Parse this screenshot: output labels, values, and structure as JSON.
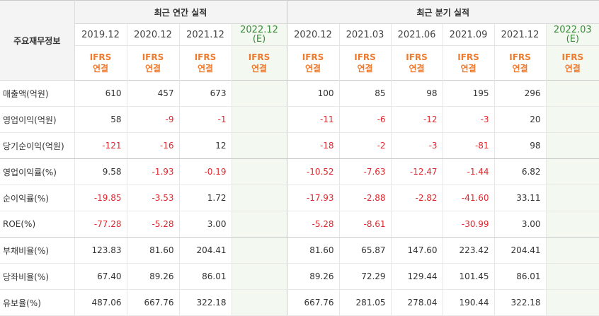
{
  "header": {
    "row_label": "주요재무정보",
    "annual_title": "최근 연간 실적",
    "quarterly_title": "최근 분기 실적"
  },
  "periods": [
    {
      "label": "2019.12",
      "est": null
    },
    {
      "label": "2020.12",
      "est": null
    },
    {
      "label": "2021.12",
      "est": null
    },
    {
      "label": "2022.12",
      "est": "(E)"
    },
    {
      "label": "2020.12",
      "est": null
    },
    {
      "label": "2021.03",
      "est": null
    },
    {
      "label": "2021.06",
      "est": null
    },
    {
      "label": "2021.09",
      "est": null
    },
    {
      "label": "2021.12",
      "est": null
    },
    {
      "label": "2022.03",
      "est": "(E)"
    }
  ],
  "ifrs": {
    "line1": "IFRS",
    "line2": "연결"
  },
  "rows": [
    {
      "label": "매출액(억원)",
      "values": [
        "610",
        "457",
        "673",
        "",
        "100",
        "85",
        "98",
        "195",
        "296",
        ""
      ]
    },
    {
      "label": "영업이익(억원)",
      "values": [
        "58",
        "-9",
        "-1",
        "",
        "-11",
        "-6",
        "-12",
        "-3",
        "20",
        ""
      ]
    },
    {
      "label": "당기순이익(억원)",
      "values": [
        "-121",
        "-16",
        "12",
        "",
        "-18",
        "-2",
        "-3",
        "-81",
        "98",
        ""
      ]
    },
    {
      "label": "영업이익률(%)",
      "values": [
        "9.58",
        "-1.93",
        "-0.19",
        "",
        "-10.52",
        "-7.63",
        "-12.47",
        "-1.44",
        "6.82",
        ""
      ]
    },
    {
      "label": "순이익률(%)",
      "values": [
        "-19.85",
        "-3.53",
        "1.72",
        "",
        "-17.93",
        "-2.88",
        "-2.82",
        "-41.60",
        "33.11",
        ""
      ]
    },
    {
      "label": "ROE(%)",
      "values": [
        "-77.28",
        "-5.28",
        "3.00",
        "",
        "-5.28",
        "-8.61",
        "",
        "-30.99",
        "3.00",
        ""
      ]
    },
    {
      "label": "부채비율(%)",
      "values": [
        "123.83",
        "81.60",
        "204.41",
        "",
        "81.60",
        "65.87",
        "147.60",
        "223.42",
        "204.41",
        ""
      ]
    },
    {
      "label": "당좌비율(%)",
      "values": [
        "67.40",
        "89.26",
        "86.01",
        "",
        "89.26",
        "72.29",
        "129.44",
        "101.45",
        "86.01",
        ""
      ]
    },
    {
      "label": "유보율(%)",
      "values": [
        "487.06",
        "667.76",
        "322.18",
        "",
        "667.76",
        "281.05",
        "278.04",
        "190.44",
        "322.18",
        ""
      ]
    }
  ],
  "colors": {
    "negative": "#e0262c",
    "ifrs": "#ee7a2d",
    "estimate_bg": "#f3f8f1",
    "estimate_text": "#3b8a3b"
  }
}
